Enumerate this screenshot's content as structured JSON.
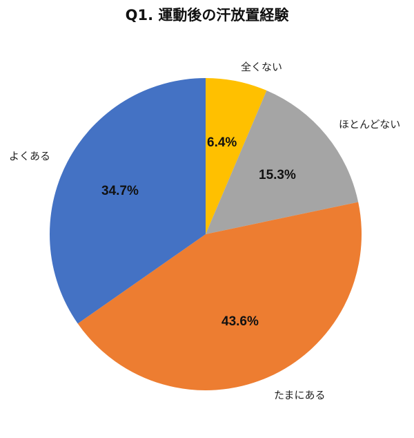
{
  "chart_data": {
    "type": "pie",
    "title": "Q1. 運動後の汗放置経験",
    "categories": [
      "全くない",
      "ほとんどない",
      "たまにある",
      "よくある"
    ],
    "values": [
      6.4,
      15.3,
      43.6,
      34.7
    ],
    "value_labels": [
      "6.4%",
      "15.3%",
      "43.6%",
      "34.7%"
    ],
    "colors": [
      "#FFC000",
      "#A5A5A5",
      "#ED7D31",
      "#4472C4"
    ],
    "start_angle": "12 o'clock, clockwise",
    "legend": "none (direct labels)"
  }
}
